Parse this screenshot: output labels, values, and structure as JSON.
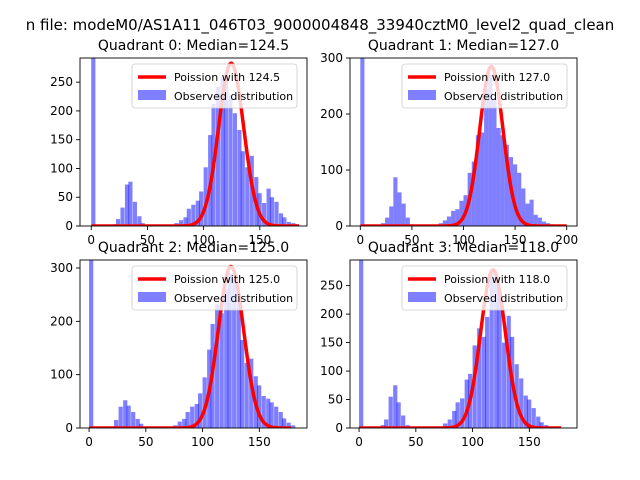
{
  "suptitle": "n file: modeM0/AS1A11_046T03_9000004848_33940cztM0_level2_quad_clean",
  "colors": {
    "bar": "#0000ff",
    "bar_opacity": 0.5,
    "line": "#ff0000",
    "axis": "#000000",
    "background": "#ffffff"
  },
  "chart_data": [
    {
      "type": "bar",
      "title": "Quadrant 0: Median=124.5",
      "xlim": [
        -10,
        192
      ],
      "ylim": [
        0,
        292
      ],
      "xticks": [
        0,
        50,
        100,
        150
      ],
      "yticks": [
        0,
        50,
        100,
        150,
        200,
        250
      ],
      "legend": {
        "position": "top-right",
        "line_label": "Poission with 124.5",
        "bar_label": "Observed distribution"
      },
      "bin_width": 3.7,
      "bins": [
        [
          0,
          292
        ],
        [
          19,
          3
        ],
        [
          22,
          12
        ],
        [
          26,
          32
        ],
        [
          30,
          72
        ],
        [
          33,
          77
        ],
        [
          37,
          42
        ],
        [
          41,
          17
        ],
        [
          44,
          5
        ],
        [
          74,
          5
        ],
        [
          78,
          10
        ],
        [
          82,
          15
        ],
        [
          85,
          30
        ],
        [
          89,
          37
        ],
        [
          93,
          44
        ],
        [
          96,
          60
        ],
        [
          100,
          102
        ],
        [
          104,
          158
        ],
        [
          107,
          212
        ],
        [
          111,
          242
        ],
        [
          115,
          257
        ],
        [
          118,
          261
        ],
        [
          122,
          227
        ],
        [
          126,
          196
        ],
        [
          130,
          167
        ],
        [
          133,
          130
        ],
        [
          137,
          102
        ],
        [
          141,
          122
        ],
        [
          145,
          85
        ],
        [
          148,
          57
        ],
        [
          152,
          40
        ],
        [
          156,
          65
        ],
        [
          159,
          50
        ],
        [
          163,
          42
        ],
        [
          167,
          22
        ],
        [
          170,
          15
        ],
        [
          174,
          7
        ],
        [
          178,
          5
        ],
        [
          181,
          3
        ]
      ],
      "poisson": {
        "mean": 124.5,
        "peak": 283,
        "x_range": [
          0,
          185
        ]
      }
    },
    {
      "type": "bar",
      "title": "Quadrant 1: Median=127.0",
      "xlim": [
        -10,
        210
      ],
      "ylim": [
        0,
        300
      ],
      "xticks": [
        0,
        50,
        100,
        150,
        200
      ],
      "yticks": [
        0,
        100,
        200,
        300
      ],
      "legend": {
        "position": "top-right",
        "line_label": "Poission with 127.0",
        "bar_label": "Observed distribution"
      },
      "bin_width": 4.0,
      "bins": [
        [
          0,
          300
        ],
        [
          20,
          5
        ],
        [
          24,
          15
        ],
        [
          28,
          35
        ],
        [
          32,
          87
        ],
        [
          36,
          60
        ],
        [
          40,
          40
        ],
        [
          44,
          15
        ],
        [
          48,
          3
        ],
        [
          76,
          5
        ],
        [
          80,
          10
        ],
        [
          84,
          17
        ],
        [
          88,
          27
        ],
        [
          92,
          30
        ],
        [
          96,
          45
        ],
        [
          100,
          55
        ],
        [
          104,
          95
        ],
        [
          108,
          115
        ],
        [
          112,
          162
        ],
        [
          116,
          167
        ],
        [
          120,
          245
        ],
        [
          124,
          270
        ],
        [
          128,
          226
        ],
        [
          132,
          175
        ],
        [
          136,
          162
        ],
        [
          140,
          145
        ],
        [
          144,
          123
        ],
        [
          148,
          110
        ],
        [
          152,
          95
        ],
        [
          156,
          67
        ],
        [
          160,
          40
        ],
        [
          164,
          47
        ],
        [
          168,
          20
        ],
        [
          172,
          15
        ],
        [
          176,
          8
        ],
        [
          180,
          5
        ],
        [
          184,
          3
        ]
      ],
      "poisson": {
        "mean": 127.0,
        "peak": 285,
        "x_range": [
          0,
          200
        ]
      }
    },
    {
      "type": "bar",
      "title": "Quadrant 2: Median=125.0",
      "xlim": [
        -8,
        192
      ],
      "ylim": [
        0,
        315
      ],
      "xticks": [
        0,
        50,
        100,
        150
      ],
      "yticks": [
        0,
        100,
        200,
        300
      ],
      "legend": {
        "position": "top-right",
        "line_label": "Poission with 125.0",
        "bar_label": "Observed distribution"
      },
      "bin_width": 3.7,
      "bins": [
        [
          0,
          315
        ],
        [
          19,
          3
        ],
        [
          22,
          15
        ],
        [
          26,
          40
        ],
        [
          30,
          52
        ],
        [
          33,
          42
        ],
        [
          37,
          30
        ],
        [
          41,
          17
        ],
        [
          44,
          8
        ],
        [
          48,
          3
        ],
        [
          74,
          5
        ],
        [
          78,
          12
        ],
        [
          82,
          17
        ],
        [
          85,
          30
        ],
        [
          89,
          40
        ],
        [
          93,
          45
        ],
        [
          96,
          65
        ],
        [
          100,
          95
        ],
        [
          104,
          147
        ],
        [
          107,
          195
        ],
        [
          111,
          232
        ],
        [
          115,
          215
        ],
        [
          119,
          260
        ],
        [
          122,
          290
        ],
        [
          126,
          280
        ],
        [
          130,
          240
        ],
        [
          133,
          165
        ],
        [
          137,
          122
        ],
        [
          141,
          130
        ],
        [
          145,
          97
        ],
        [
          148,
          80
        ],
        [
          152,
          60
        ],
        [
          156,
          55
        ],
        [
          159,
          48
        ],
        [
          163,
          40
        ],
        [
          167,
          30
        ],
        [
          170,
          18
        ],
        [
          174,
          10
        ],
        [
          178,
          5
        ]
      ],
      "poisson": {
        "mean": 125.0,
        "peak": 303,
        "x_range": [
          0,
          178
        ]
      }
    },
    {
      "type": "bar",
      "title": "Quadrant 3: Median=118.0",
      "xlim": [
        -8,
        192
      ],
      "ylim": [
        0,
        295
      ],
      "xticks": [
        0,
        50,
        100,
        150
      ],
      "yticks": [
        0,
        50,
        100,
        150,
        200,
        250
      ],
      "legend": {
        "position": "top-right",
        "line_label": "Poission with 118.0",
        "bar_label": "Observed distribution"
      },
      "bin_width": 3.7,
      "bins": [
        [
          0,
          295
        ],
        [
          19,
          5
        ],
        [
          22,
          15
        ],
        [
          26,
          55
        ],
        [
          30,
          75
        ],
        [
          33,
          45
        ],
        [
          37,
          22
        ],
        [
          41,
          5
        ],
        [
          74,
          8
        ],
        [
          78,
          15
        ],
        [
          82,
          30
        ],
        [
          85,
          45
        ],
        [
          89,
          52
        ],
        [
          93,
          85
        ],
        [
          96,
          95
        ],
        [
          100,
          145
        ],
        [
          104,
          175
        ],
        [
          108,
          160
        ],
        [
          111,
          195
        ],
        [
          115,
          272
        ],
        [
          119,
          265
        ],
        [
          122,
          237
        ],
        [
          126,
          150
        ],
        [
          130,
          197
        ],
        [
          133,
          160
        ],
        [
          137,
          112
        ],
        [
          141,
          87
        ],
        [
          145,
          57
        ],
        [
          148,
          50
        ],
        [
          152,
          35
        ],
        [
          156,
          20
        ],
        [
          159,
          10
        ],
        [
          163,
          5
        ]
      ],
      "poisson": {
        "mean": 118.0,
        "peak": 278,
        "x_range": [
          0,
          178
        ]
      }
    }
  ]
}
